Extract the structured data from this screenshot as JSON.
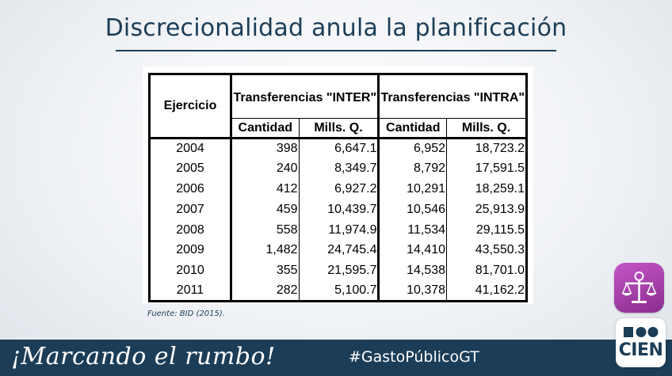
{
  "slide": {
    "title": "Discrecionalidad anula la planificación",
    "source": "Fuente: BID (2015)."
  },
  "table": {
    "first_header": "Ejercicio",
    "group_inter": "Transferencias \"INTER\"",
    "group_intra": "Transferencias \"INTRA\"",
    "sub_headers": [
      "Cantidad",
      "Mills. Q.",
      "Cantidad",
      "Mills. Q."
    ],
    "rows": [
      [
        "2004",
        "398",
        "6,647.1",
        "6,952",
        "18,723.2"
      ],
      [
        "2005",
        "240",
        "8,349.7",
        "8,792",
        "17,591.5"
      ],
      [
        "2006",
        "412",
        "6,927.2",
        "10,291",
        "18,259.1"
      ],
      [
        "2007",
        "459",
        "10,439.7",
        "10,546",
        "25,913.9"
      ],
      [
        "2008",
        "558",
        "11,974.9",
        "11,534",
        "29,115.5"
      ],
      [
        "2009",
        "1,482",
        "24,745.4",
        "14,410",
        "43,550.3"
      ],
      [
        "2010",
        "355",
        "21,595.7",
        "14,538",
        "81,701.0"
      ],
      [
        "2011",
        "282",
        "5,100.7",
        "10,378",
        "41,162.2"
      ]
    ]
  },
  "footer": {
    "slogan": "¡Marcando el rumbo!",
    "hashtag": "#GastoPúblicoGT"
  },
  "logos": {
    "app_icon": "scales-of-justice-icon",
    "brand_text": "CIEN",
    "accent": "#1c3d57",
    "app_color": "#a63fab"
  }
}
